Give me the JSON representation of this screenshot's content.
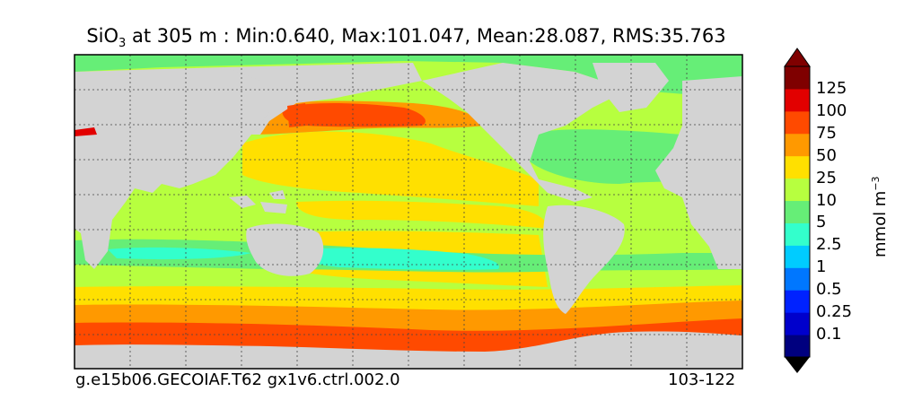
{
  "title": {
    "variable": "SiO",
    "variable_subscript": "3",
    "text": " at 305 m : Min:0.640, Max:101.047, Mean:28.087, RMS:35.763"
  },
  "footer": {
    "case_name": "g.e15b06.GECOIAF.T62 gx1v6.ctrl.002.0",
    "years": "103-122"
  },
  "colorbar": {
    "units_base": "mmol m",
    "units_exponent": "−3",
    "levels": [
      "0.1",
      "0.25",
      "0.5",
      "1",
      "2.5",
      "5",
      "10",
      "25",
      "50",
      "75",
      "100",
      "125"
    ],
    "colors": [
      "#00007f",
      "#0000cc",
      "#0022ff",
      "#0077ff",
      "#00ccff",
      "#33ffcc",
      "#66ee77",
      "#b7ff3f",
      "#ffe000",
      "#ff9900",
      "#ff4a00",
      "#e20000",
      "#7f0000",
      "#000000"
    ]
  },
  "map": {
    "land_color": "#d3d3d3",
    "ice_color": "#ffffff",
    "gridlines": "dotted"
  }
}
